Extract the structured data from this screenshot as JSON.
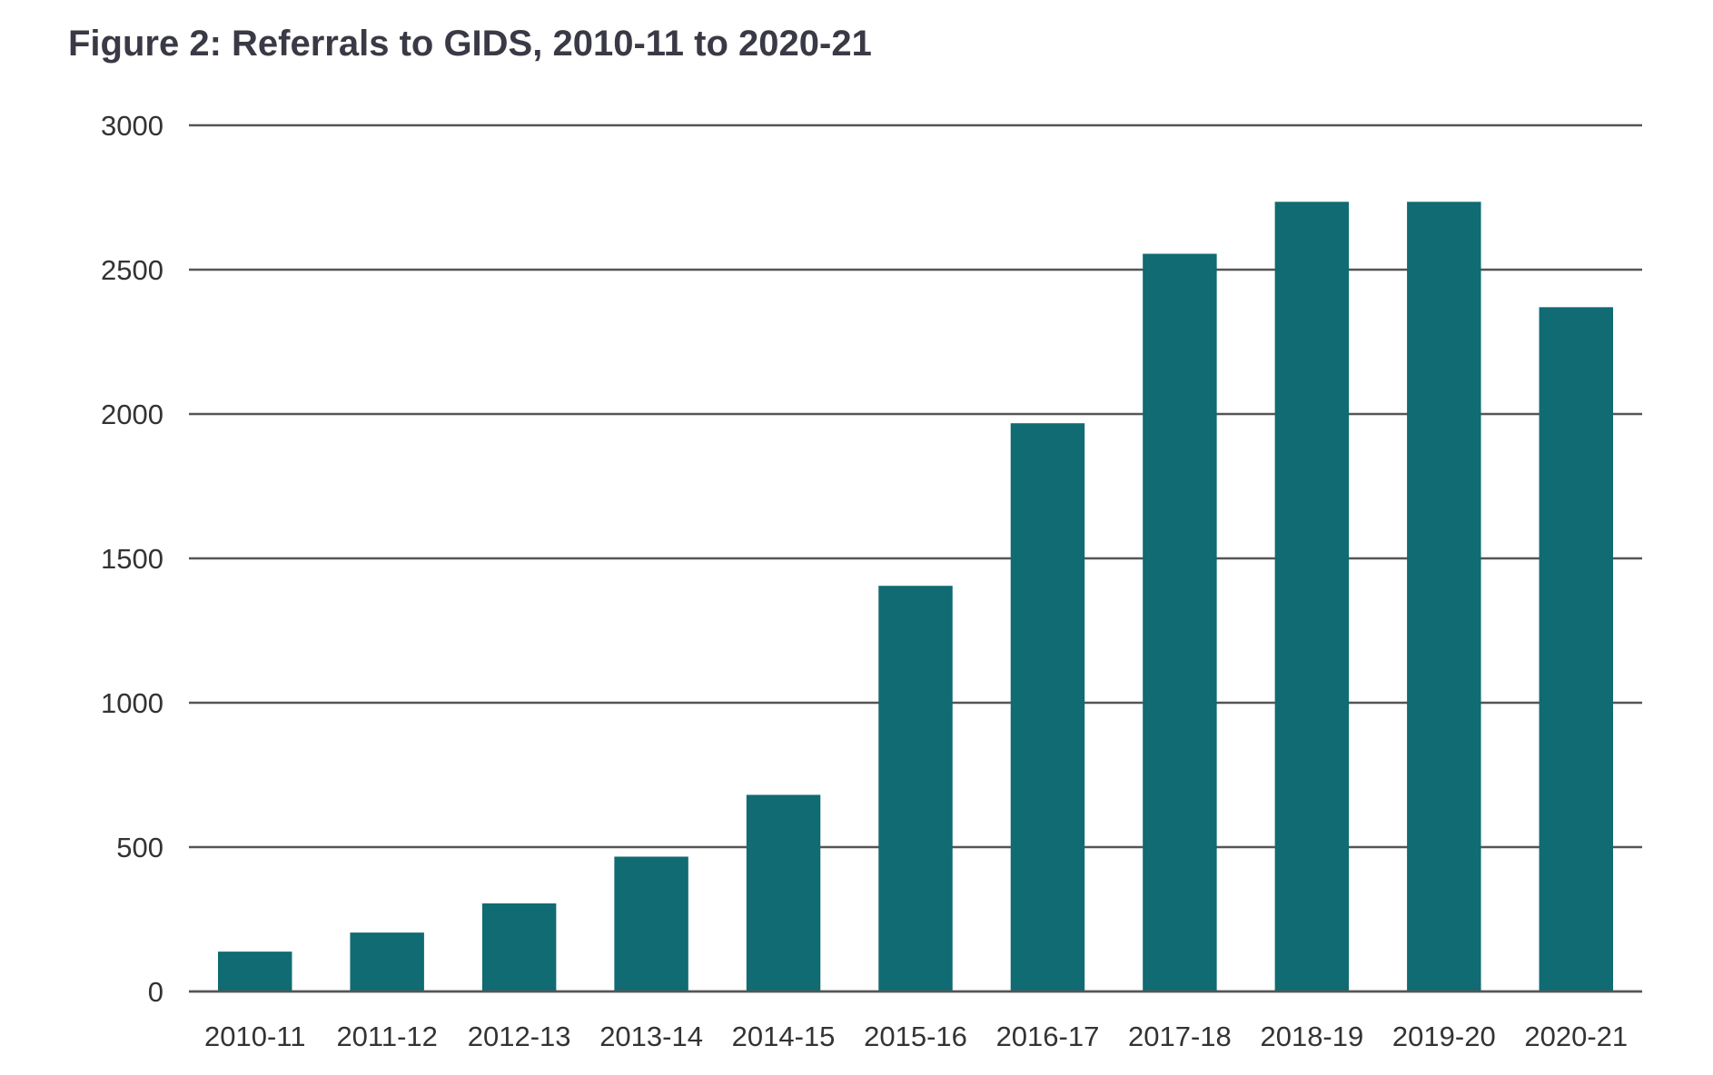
{
  "chart_data": {
    "type": "bar",
    "title": "Figure 2: Referrals to GIDS, 2010-11 to 2020-21",
    "xlabel": "",
    "ylabel": "",
    "categories": [
      "2010-11",
      "2011-12",
      "2012-13",
      "2013-14",
      "2014-15",
      "2015-16",
      "2016-17",
      "2017-18",
      "2018-19",
      "2019-20",
      "2020-21"
    ],
    "series": [
      {
        "values": [
          138,
          204,
          305,
          467,
          681,
          1405,
          1968,
          2555,
          2735,
          2735,
          2370
        ]
      }
    ],
    "ylim": [
      0,
      3000
    ],
    "yticks": [
      0,
      500,
      1000,
      1500,
      2000,
      2500,
      3000
    ],
    "grid": true,
    "legend": "none",
    "colors": {
      "bar": "#106b73",
      "gridline": "#555555",
      "text": "#333333",
      "title": "#3a3a46"
    }
  }
}
